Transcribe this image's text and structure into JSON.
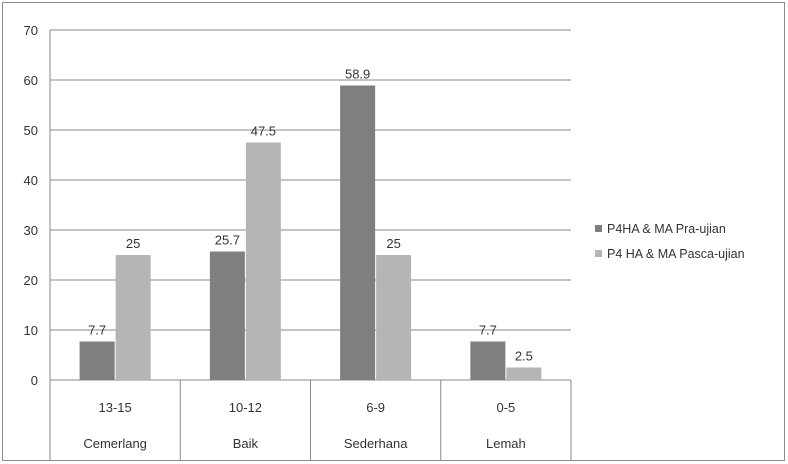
{
  "chart_data": {
    "type": "bar",
    "categories": [
      "13-15",
      "10-12",
      "6-9",
      "0-5"
    ],
    "category_groups": [
      "Cemerlang",
      "Baik",
      "Sederhana",
      "Lemah"
    ],
    "series": [
      {
        "name": "P4HA & MA  Pra-ujian",
        "values": [
          7.7,
          25.7,
          58.9,
          7.7
        ],
        "labels": [
          "7.7",
          "25.7",
          "58.9",
          "7.7"
        ],
        "color": "#7f7f7f"
      },
      {
        "name": "P4 HA & MA Pasca-ujian",
        "values": [
          25,
          47.5,
          25,
          2.5
        ],
        "labels": [
          "25",
          "47.5",
          "25",
          "2.5"
        ],
        "color": "#b5b5b5"
      }
    ],
    "yticks": [
      "0",
      "10",
      "20",
      "30",
      "40",
      "50",
      "60",
      "70"
    ],
    "ylim": [
      0,
      70
    ],
    "grid": true,
    "legend": "right"
  }
}
